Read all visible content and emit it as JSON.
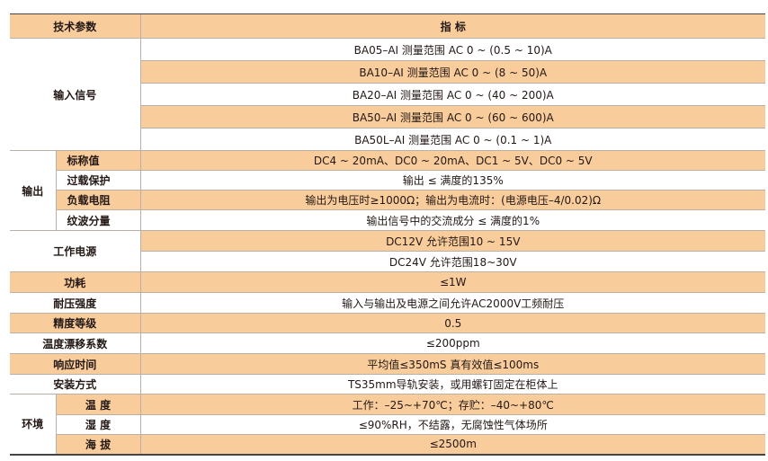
{
  "header": {
    "param": "技术参数",
    "spec": "指 标"
  },
  "input": {
    "label": "输入信号",
    "rows": [
      "BA05–AI  测量范围  AC 0 ~ (0.5 ~ 10)A",
      "BA10–AI  测量范围  AC 0 ~ (8 ~ 50)A",
      "BA20–AI  测量范围  AC 0 ~ (40 ~ 200)A",
      "BA50–AI  测量范围  AC 0 ~ (60 ~ 600)A",
      "BA50L–AI  测量范围  AC 0 ~ (0.1 ~ 1)A"
    ]
  },
  "output": {
    "label": "输出",
    "rows": [
      {
        "name": "标称值",
        "value": "DC4 ~ 20mA、DC0 ~ 20mA、DC1 ~ 5V、DC0 ~ 5V"
      },
      {
        "name": "过载保护",
        "value": "输出 ≤ 满度的135%"
      },
      {
        "name": "负载电阻",
        "value": "输出为电压时≥1000Ω；输出为电流时：(电源电压–4/0.02)Ω"
      },
      {
        "name": "纹波分量",
        "value": "输出信号中的交流成分 ≤ 满度的1%"
      }
    ]
  },
  "power": {
    "label": "工作电源",
    "rows": [
      "DC12V  允许范围10 ~ 15V",
      "DC24V  允许范围18~30V"
    ]
  },
  "singles": [
    {
      "name": "功耗",
      "value": "≤1W"
    },
    {
      "name": "耐压强度",
      "value": "输入与输出及电源之间允许AC2000V工频耐压"
    },
    {
      "name": "精度等级",
      "value": "0.5"
    },
    {
      "name": "温度漂移系数",
      "value": "≤200ppm"
    },
    {
      "name": "响应时间",
      "value": "平均值≤350mS    真有效值≤100ms"
    },
    {
      "name": "安装方式",
      "value": "TS35mm导轨安装，或用螺钉固定在柜体上"
    }
  ],
  "env": {
    "label": "环境",
    "rows": [
      {
        "name": "温 度",
        "value": "工作：–25~+70℃；存贮：–40~+80℃"
      },
      {
        "name": "湿 度",
        "value": "≤90%RH，不结露，无腐蚀性气体场所"
      },
      {
        "name": "海 拔",
        "value": "≤2500m"
      }
    ]
  },
  "colors": {
    "accent_row": "#f9cc9c"
  }
}
